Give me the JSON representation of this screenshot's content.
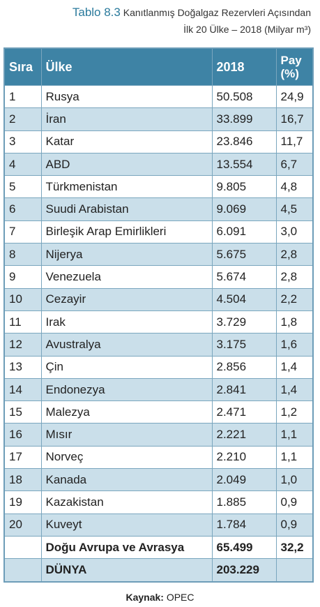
{
  "title": {
    "label": "Tablo 8.3",
    "line1": "Kanıtlanmış Doğalgaz Rezervleri Açısından",
    "line2": "İlk 20 Ülke – 2018 (Milyar m³)"
  },
  "table": {
    "headers": [
      "Sıra",
      "Ülke",
      "2018",
      "Pay (%)"
    ],
    "rows": [
      [
        "1",
        "Rusya",
        "50.508",
        "24,9"
      ],
      [
        "2",
        "İran",
        "33.899",
        "16,7"
      ],
      [
        "3",
        "Katar",
        "23.846",
        "11,7"
      ],
      [
        "4",
        "ABD",
        "13.554",
        "6,7"
      ],
      [
        "5",
        "Türkmenistan",
        "9.805",
        "4,8"
      ],
      [
        "6",
        "Suudi Arabistan",
        "9.069",
        "4,5"
      ],
      [
        "7",
        "Birleşik Arap Emirlikleri",
        "6.091",
        "3,0"
      ],
      [
        "8",
        "Nijerya",
        "5.675",
        "2,8"
      ],
      [
        "9",
        "Venezuela",
        "5.674",
        "2,8"
      ],
      [
        "10",
        "Cezayir",
        "4.504",
        "2,2"
      ],
      [
        "11",
        "Irak",
        "3.729",
        "1,8"
      ],
      [
        "12",
        "Avustralya",
        "3.175",
        "1,6"
      ],
      [
        "13",
        "Çin",
        "2.856",
        "1,4"
      ],
      [
        "14",
        "Endonezya",
        "2.841",
        "1,4"
      ],
      [
        "15",
        "Malezya",
        "2.471",
        "1,2"
      ],
      [
        "16",
        "Mısır",
        "2.221",
        "1,1"
      ],
      [
        "17",
        "Norveç",
        "2.210",
        "1,1"
      ],
      [
        "18",
        "Kanada",
        "2.049",
        "1,0"
      ],
      [
        "19",
        "Kazakistan",
        "1.885",
        "0,9"
      ],
      [
        "20",
        "Kuveyt",
        "1.784",
        "0,9"
      ]
    ],
    "region_total": {
      "label": "Doğu Avrupa ve Avrasya",
      "value": "65.499",
      "share": "32,2"
    },
    "world_total": {
      "label": "DÜNYA",
      "value": "203.229"
    }
  },
  "source": {
    "label": "Kaynak:",
    "text": "OPEC"
  }
}
